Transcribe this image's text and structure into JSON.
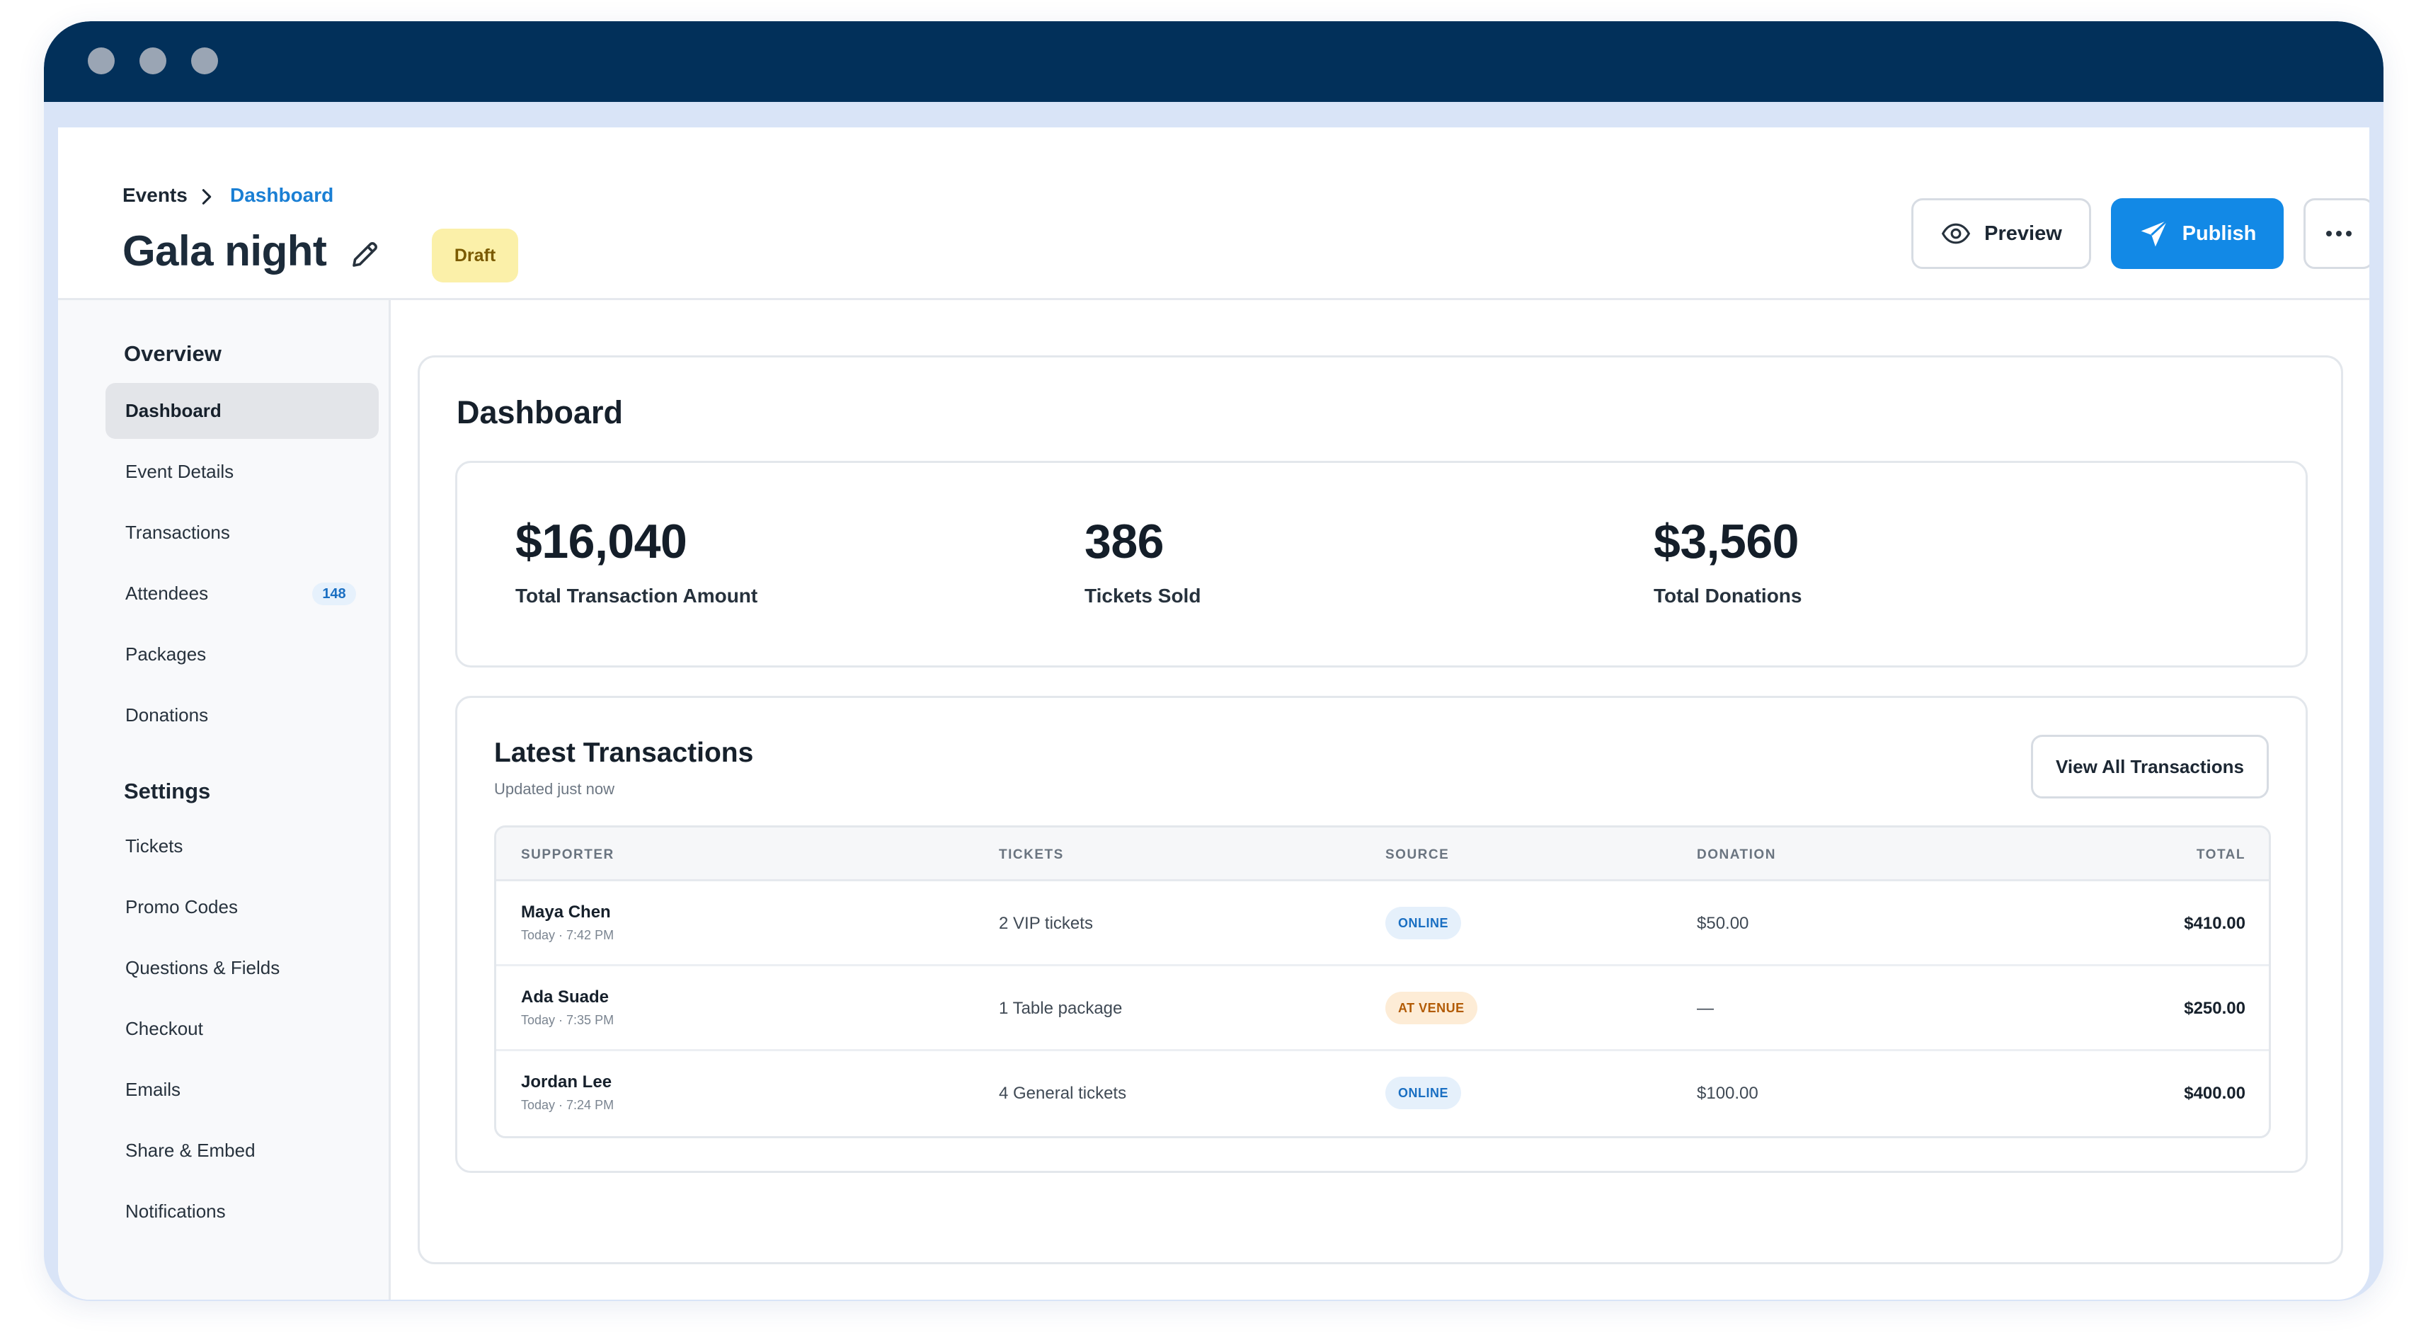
{
  "header": {
    "breadcrumb": {
      "parent": "Events",
      "current": "Dashboard"
    },
    "title": "Gala night",
    "status_badge": "Draft",
    "actions": {
      "preview": "Preview",
      "publish": "Publish"
    }
  },
  "sidebar": {
    "overview_title": "Overview",
    "overview_items": [
      {
        "label": "Dashboard",
        "active": true
      },
      {
        "label": "Event Details"
      },
      {
        "label": "Transactions"
      },
      {
        "label": "Attendees",
        "badge": "148"
      },
      {
        "label": "Packages"
      },
      {
        "label": "Donations"
      }
    ],
    "settings_title": "Settings",
    "settings_items": [
      {
        "label": "Tickets"
      },
      {
        "label": "Promo Codes"
      },
      {
        "label": "Questions & Fields"
      },
      {
        "label": "Checkout"
      },
      {
        "label": "Emails"
      },
      {
        "label": "Share & Embed"
      },
      {
        "label": "Notifications"
      }
    ]
  },
  "main": {
    "title": "Dashboard",
    "stats": [
      {
        "value": "$16,040",
        "label": "Total Transaction Amount"
      },
      {
        "value": "386",
        "label": "Tickets Sold"
      },
      {
        "value": "$3,560",
        "label": "Total Donations"
      }
    ],
    "transactions": {
      "title": "Latest Transactions",
      "subtitle": "Updated just now",
      "view_all": "View All Transactions",
      "columns": {
        "supporter": "SUPPORTER",
        "tickets": "TICKETS",
        "source": "SOURCE",
        "donation": "DONATION",
        "total": "TOTAL"
      },
      "rows": [
        {
          "name": "Maya Chen",
          "time": "Today · 7:42 PM",
          "tickets": "2 VIP tickets",
          "source": "ONLINE",
          "donation": "$50.00",
          "total": "$410.00"
        },
        {
          "name": "Ada Suade",
          "time": "Today · 7:35 PM",
          "tickets": "1 Table package",
          "source": "AT VENUE",
          "donation": "—",
          "total": "$250.00"
        },
        {
          "name": "Jordan Lee",
          "time": "Today · 7:24 PM",
          "tickets": "4 General tickets",
          "source": "ONLINE",
          "donation": "$100.00",
          "total": "$400.00"
        }
      ]
    }
  },
  "colors": {
    "titlebar": "#02305a",
    "accent": "#1289e6",
    "draft_bg": "#fbf0a9",
    "online": "#1a6fc2",
    "venue": "#b25b05"
  },
  "icons": {
    "preview": "eye-icon",
    "publish": "send-icon",
    "more": "more-horizontal-icon",
    "edit": "pencil-icon",
    "breadcrumb": "chevron-right-icon"
  }
}
